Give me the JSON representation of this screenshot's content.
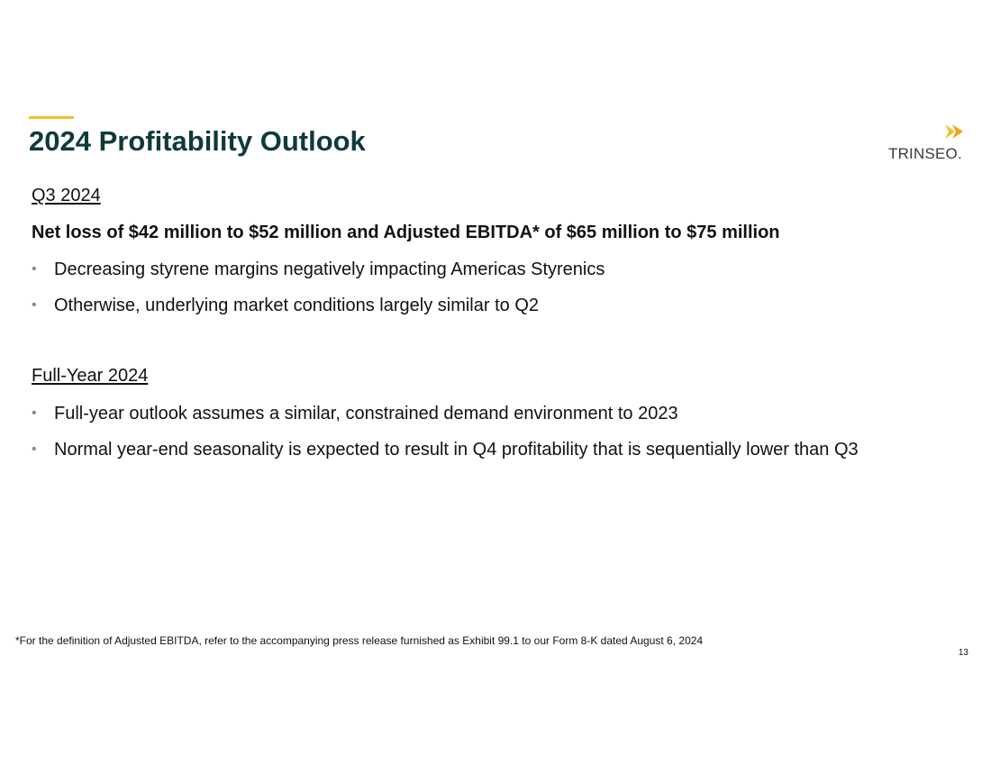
{
  "slide": {
    "title": "2024 Profitability Outlook",
    "accent_color": "#f2c12e",
    "title_color": "#0e3a3a"
  },
  "logo": {
    "text": "TRINSEO.",
    "mark_icon": "trinseo-chevron-icon",
    "mark_color": "#f2c12e"
  },
  "q3": {
    "heading": "Q3 2024",
    "summary": "Net loss of $42 million to $52 million and Adjusted EBITDA* of $65 million to $75 million",
    "bullets": [
      "Decreasing styrene margins negatively impacting Americas Styrenics",
      "Otherwise, underlying market conditions largely similar to Q2"
    ]
  },
  "full_year": {
    "heading": "Full-Year 2024",
    "bullets": [
      "Full-year outlook assumes a similar, constrained demand environment to 2023",
      "Normal year-end seasonality is expected to result in Q4 profitability that is sequentially lower than Q3"
    ]
  },
  "footnote": "*For the definition of Adjusted EBITDA, refer to the accompanying press release furnished as Exhibit 99.1 to our Form 8-K dated August 6, 2024",
  "page_number": "13",
  "bullet_glyph": "•"
}
